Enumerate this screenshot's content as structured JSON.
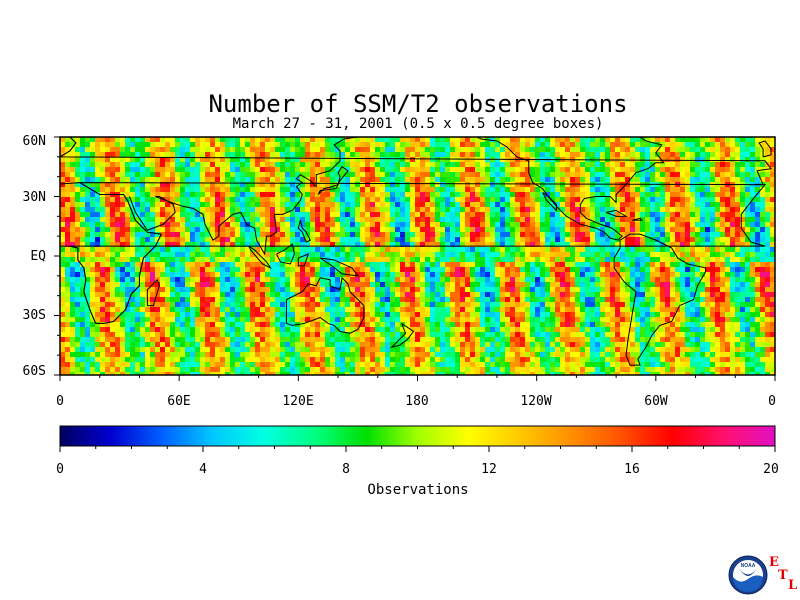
{
  "title": "Number of SSM/T2 observations",
  "subtitle": "March 27 - 31, 2001 (0.5 x 0.5 degree boxes)",
  "lat_labels": [
    "60N",
    "30N",
    "EQ",
    "30S",
    "60S"
  ],
  "lon_labels": [
    "0",
    "60E",
    "120E",
    "180",
    "120W",
    "60W",
    "0"
  ],
  "colorbar": {
    "ticks": [
      "0",
      "4",
      "8",
      "12",
      "16",
      "20"
    ],
    "label": "Observations",
    "range": [
      0,
      20
    ],
    "colors": [
      "#000060",
      "#0000d0",
      "#0060ff",
      "#00c8ff",
      "#00ffe0",
      "#00ff80",
      "#00e000",
      "#a0ff00",
      "#ffff00",
      "#ffc800",
      "#ff9000",
      "#ff5000",
      "#ff0000",
      "#ff1070",
      "#e010c0"
    ]
  },
  "map": {
    "lat_range": [
      -60,
      60
    ],
    "lon_range": [
      0,
      360
    ],
    "projection": "equirectangular"
  },
  "logo": {
    "name": "noaa-logo",
    "text": "NOAA",
    "etl": [
      "E",
      "T",
      "L"
    ]
  }
}
